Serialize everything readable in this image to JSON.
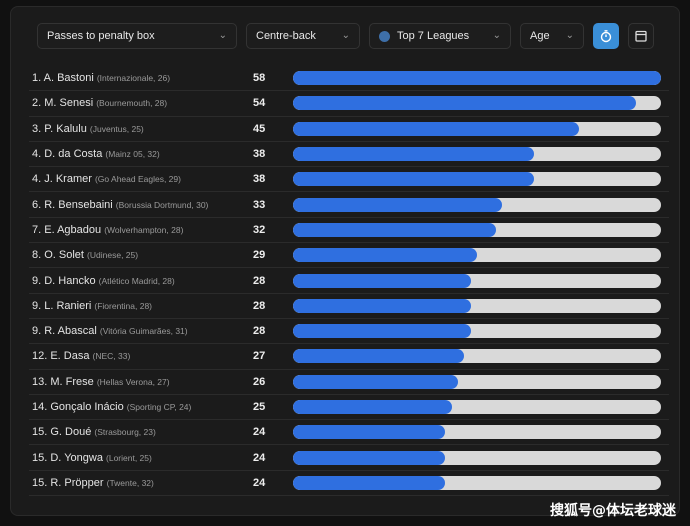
{
  "filters": {
    "metric": "Passes to penalty box",
    "position": "Centre-back",
    "competition": "Top 7 Leagues",
    "age": "Age"
  },
  "colors": {
    "bar": "#2f6fe0",
    "track": "#d9d9d9",
    "active_button": "#3a8fd8"
  },
  "icons": {
    "timer_button": "stopwatch-icon",
    "calendar_button": "calendar-icon"
  },
  "max_value": 58,
  "players": [
    {
      "name": "1. A. Bastoni",
      "club": "(Internazionale, 26)",
      "value": 58
    },
    {
      "name": "2. M. Senesi",
      "club": "(Bournemouth, 28)",
      "value": 54
    },
    {
      "name": "3. P. Kalulu",
      "club": "(Juventus, 25)",
      "value": 45
    },
    {
      "name": "4. D. da Costa",
      "club": "(Mainz 05, 32)",
      "value": 38
    },
    {
      "name": "4. J. Kramer",
      "club": "(Go Ahead Eagles, 29)",
      "value": 38
    },
    {
      "name": "6. R. Bensebaini",
      "club": "(Borussia Dortmund, 30)",
      "value": 33
    },
    {
      "name": "7. E. Agbadou",
      "club": "(Wolverhampton, 28)",
      "value": 32
    },
    {
      "name": "8. O. Solet",
      "club": "(Udinese, 25)",
      "value": 29
    },
    {
      "name": "9. D. Hancko",
      "club": "(Atlético Madrid, 28)",
      "value": 28
    },
    {
      "name": "9. L. Ranieri",
      "club": "(Fiorentina, 28)",
      "value": 28
    },
    {
      "name": "9. R. Abascal",
      "club": "(Vitória Guimarães, 31)",
      "value": 28
    },
    {
      "name": "12. E. Dasa",
      "club": "(NEC, 33)",
      "value": 27
    },
    {
      "name": "13. M. Frese",
      "club": "(Hellas Verona, 27)",
      "value": 26
    },
    {
      "name": "14. Gonçalo Inácio",
      "club": "(Sporting CP, 24)",
      "value": 25
    },
    {
      "name": "15. G. Doué",
      "club": "(Strasbourg, 23)",
      "value": 24
    },
    {
      "name": "15. D. Yongwa",
      "club": "(Lorient, 25)",
      "value": 24
    },
    {
      "name": "15. R. Pröpper",
      "club": "(Twente, 32)",
      "value": 24
    }
  ],
  "watermark": "搜狐号@体坛老球迷"
}
